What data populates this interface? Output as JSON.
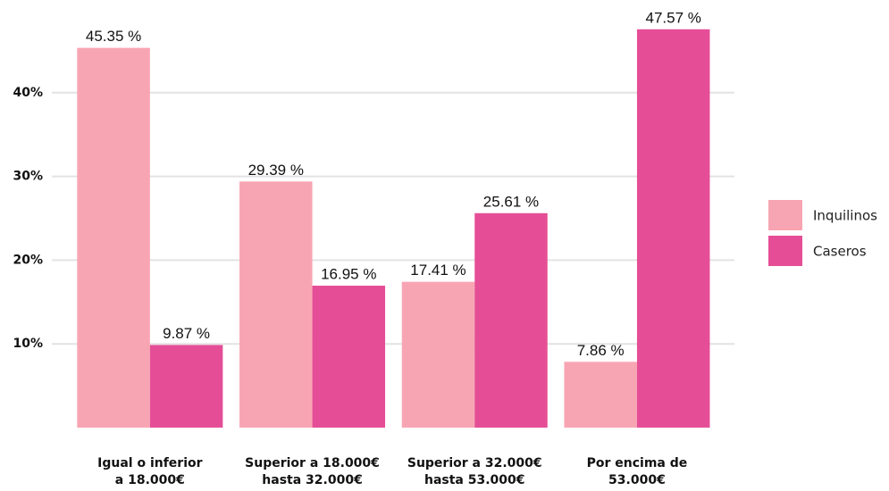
{
  "chart_data": {
    "type": "bar",
    "categories": [
      "Igual o inferior\na 18.000€",
      "Superior a 18.000€\nhasta 32.000€",
      "Superior a 32.000€\nhasta 53.000€",
      "Por encima de\n53.000€"
    ],
    "series": [
      {
        "name": "Inquilinos",
        "color": "#f8a5b3",
        "values": [
          45.35,
          29.39,
          17.41,
          7.86
        ],
        "value_labels": [
          "45.35 %",
          "29.39 %",
          "17.41 %",
          "7.86 %"
        ]
      },
      {
        "name": "Caseros",
        "color": "#e54e96",
        "values": [
          9.87,
          16.95,
          25.61,
          47.57
        ],
        "value_labels": [
          "9.87 %",
          "16.95 %",
          "25.61 %",
          "47.57 %"
        ]
      }
    ],
    "ylim": [
      0,
      50
    ],
    "yticks": [
      {
        "value": 10,
        "label": "10%"
      },
      {
        "value": 20,
        "label": "20%"
      },
      {
        "value": 30,
        "label": "30%"
      },
      {
        "value": 40,
        "label": "40%"
      }
    ],
    "grid": true,
    "legend": "right"
  }
}
